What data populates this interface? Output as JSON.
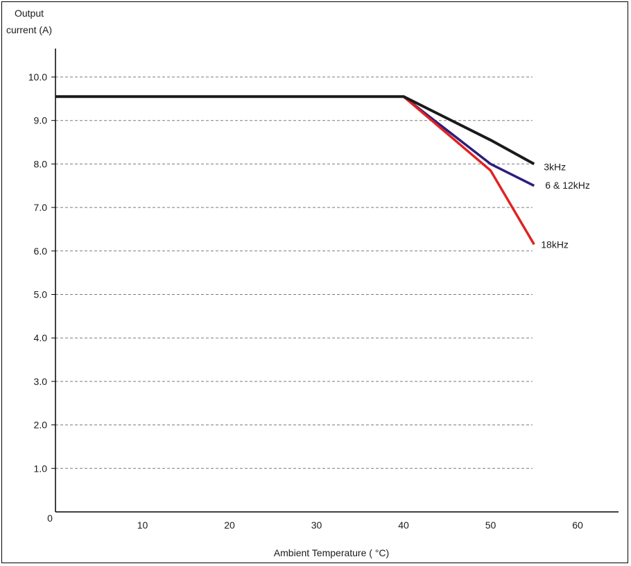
{
  "chart_data": {
    "type": "line",
    "ylabel_line1": "Output",
    "ylabel_line2": "current (A)",
    "xlabel": "Ambient Temperature ( °C)",
    "xlim": [
      0,
      65
    ],
    "ylim": [
      0,
      11
    ],
    "x_ticks": [
      0,
      10,
      20,
      30,
      40,
      50,
      60
    ],
    "x_tick_labels": [
      "0",
      "10",
      "20",
      "30",
      "40",
      "50",
      "60"
    ],
    "y_ticks": [
      1,
      2,
      3,
      4,
      5,
      6,
      7,
      8,
      9,
      10
    ],
    "y_tick_labels": [
      "1.0",
      "2.0",
      "3.0",
      "4.0",
      "5.0",
      "6.0",
      "7.0",
      "8.0",
      "9.0",
      "10.0"
    ],
    "grid": "horizontal dashed",
    "series": [
      {
        "name": "3kHz",
        "color": "#1a1a1a",
        "x": [
          0,
          40,
          50,
          55
        ],
        "y": [
          9.55,
          9.55,
          8.55,
          8.0
        ]
      },
      {
        "name": "6 & 12kHz",
        "color": "#2b1e7a",
        "x": [
          0,
          40,
          50,
          55
        ],
        "y": [
          9.55,
          9.55,
          8.0,
          7.5
        ]
      },
      {
        "name": "18kHz",
        "color": "#e02222",
        "x": [
          0,
          40,
          50,
          55
        ],
        "y": [
          9.55,
          9.55,
          7.85,
          6.15
        ]
      }
    ]
  }
}
